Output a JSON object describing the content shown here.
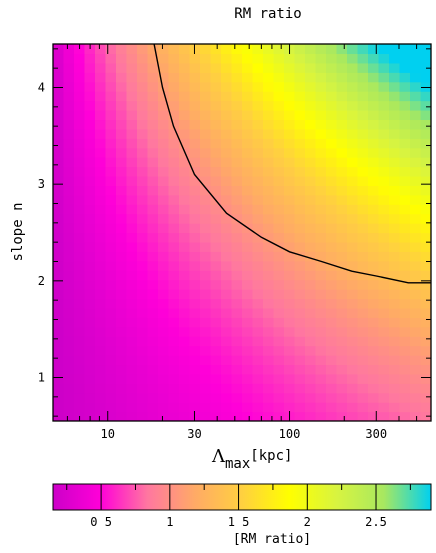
{
  "chart_data": {
    "type": "heatmap",
    "title": "RM ratio",
    "xlabel": {
      "symbol": "Λ",
      "subscript": "max",
      "unit": "[kpc]"
    },
    "ylabel": "slope n",
    "x_scale": "log",
    "xlim": [
      5,
      600
    ],
    "ylim": [
      0.55,
      4.45
    ],
    "x_ticks": [
      {
        "value": 10,
        "label": "10"
      },
      {
        "value": 30,
        "label": "30"
      },
      {
        "value": 100,
        "label": "100"
      },
      {
        "value": 300,
        "label": "300"
      }
    ],
    "y_ticks": [
      {
        "value": 1,
        "label": "1"
      },
      {
        "value": 2,
        "label": "2"
      },
      {
        "value": 3,
        "label": "3"
      },
      {
        "value": 4,
        "label": "4"
      }
    ],
    "contour": {
      "level": 1,
      "points": [
        [
          18,
          4.45
        ],
        [
          20,
          4.0
        ],
        [
          23,
          3.6
        ],
        [
          30,
          3.1
        ],
        [
          45,
          2.7
        ],
        [
          70,
          2.45
        ],
        [
          100,
          2.3
        ],
        [
          150,
          2.2
        ],
        [
          220,
          2.1
        ],
        [
          300,
          2.05
        ],
        [
          450,
          1.98
        ],
        [
          600,
          1.98
        ]
      ]
    },
    "colorbar": {
      "label": "[RM ratio]",
      "range": [
        0.15,
        2.9
      ],
      "ticks": [
        {
          "value": 0.5,
          "label": "0 5"
        },
        {
          "value": 1.0,
          "label": "1"
        },
        {
          "value": 1.5,
          "label": "1 5"
        },
        {
          "value": 2.0,
          "label": "2"
        },
        {
          "value": 2.5,
          "label": "2.5"
        }
      ],
      "colors": [
        "#cc00c8",
        "#ff00d8",
        "#ff77a0",
        "#ffaa66",
        "#ffd040",
        "#ffff00",
        "#d8f440",
        "#a8e860",
        "#00d0f0"
      ]
    }
  }
}
